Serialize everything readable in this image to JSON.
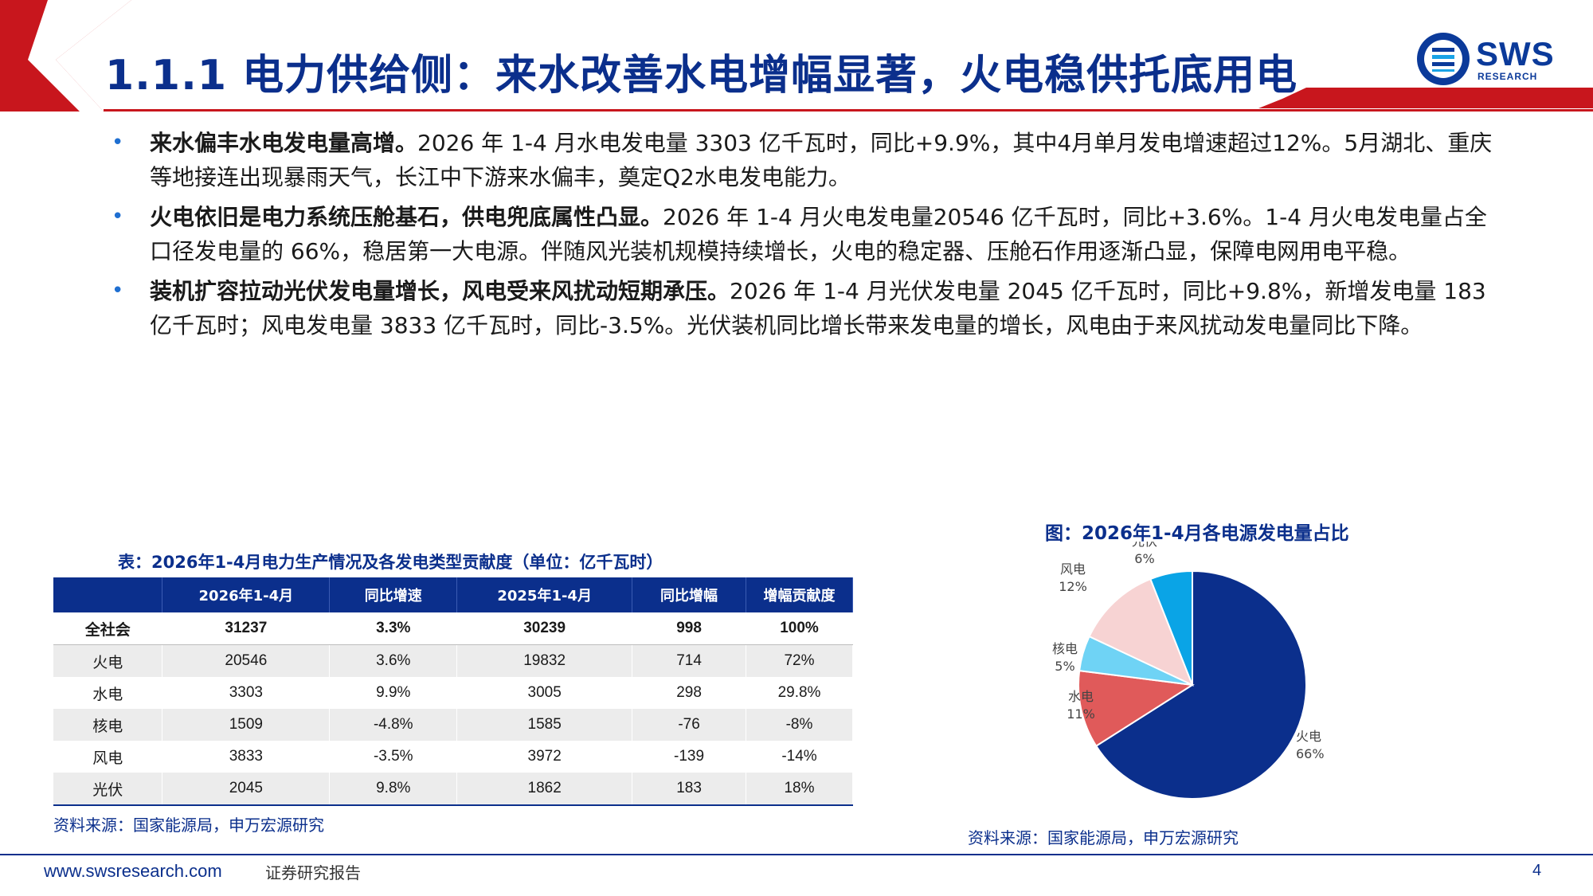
{
  "header": {
    "title": "1.1.1 电力供给侧：来水改善水电增幅显著，火电稳供托底用电",
    "logo_text": "SWS",
    "logo_sub": "RESEARCH"
  },
  "bullets": [
    {
      "bold": "来水偏丰水电发电量高增。",
      "text": "2026 年 1-4 月水电发电量 3303 亿千瓦时，同比+9.9%，其中4月单月发电增速超过12%。5月湖北、重庆等地接连出现暴雨天气，长江中下游来水偏丰，奠定Q2水电发电能力。"
    },
    {
      "bold": "火电依旧是电力系统压舱基石，供电兜底属性凸显。",
      "text": "2026 年 1-4 月火电发电量20546 亿千瓦时，同比+3.6%。1-4 月火电发电量占全口径发电量的 66%，稳居第一大电源。伴随风光装机规模持续增长，火电的稳定器、压舱石作用逐渐凸显，保障电网用电平稳。"
    },
    {
      "bold": "装机扩容拉动光伏发电量增长，风电受来风扰动短期承压。",
      "text": "2026 年 1-4 月光伏发电量 2045 亿千瓦时，同比+9.8%，新增发电量 183 亿千瓦时；风电发电量 3833 亿千瓦时，同比-3.5%。光伏装机同比增长带来发电量的增长，风电由于来风扰动发电量同比下降。"
    }
  ],
  "table": {
    "title": "表：2026年1-4月电力生产情况及各发电类型贡献度（单位：亿千瓦时）",
    "headers": [
      "",
      "2026年1-4月",
      "同比增速",
      "2025年1-4月",
      "同比增幅",
      "增幅贡献度"
    ],
    "rows": [
      [
        "全社会",
        "31237",
        "3.3%",
        "30239",
        "998",
        "100%"
      ],
      [
        "火电",
        "20546",
        "3.6%",
        "19832",
        "714",
        "72%"
      ],
      [
        "水电",
        "3303",
        "9.9%",
        "3005",
        "298",
        "29.8%"
      ],
      [
        "核电",
        "1509",
        "-4.8%",
        "1585",
        "-76",
        "-8%"
      ],
      [
        "风电",
        "3833",
        "-3.5%",
        "3972",
        "-139",
        "-14%"
      ],
      [
        "光伏",
        "2045",
        "9.8%",
        "1862",
        "183",
        "18%"
      ]
    ],
    "source": "资料来源：国家能源局，申万宏源研究"
  },
  "chart_data": {
    "type": "pie",
    "title": "图：2026年1-4月各电源发电量占比",
    "slices": [
      {
        "label": "火电",
        "value": 66,
        "display": "66%",
        "color": "#0b2f8c"
      },
      {
        "label": "水电",
        "value": 11,
        "display": "11%",
        "color": "#e05a5a"
      },
      {
        "label": "核电",
        "value": 5,
        "display": "5%",
        "color": "#6fd3f5"
      },
      {
        "label": "风电",
        "value": 12,
        "display": "12%",
        "color": "#f7d3d3"
      },
      {
        "label": "光伏",
        "value": 6,
        "display": "6%",
        "color": "#0aa4e6"
      }
    ],
    "source": "资料来源：国家能源局，申万宏源研究"
  },
  "footer": {
    "url": "www.swsresearch.com",
    "category": "证券研究报告",
    "page": "4"
  }
}
